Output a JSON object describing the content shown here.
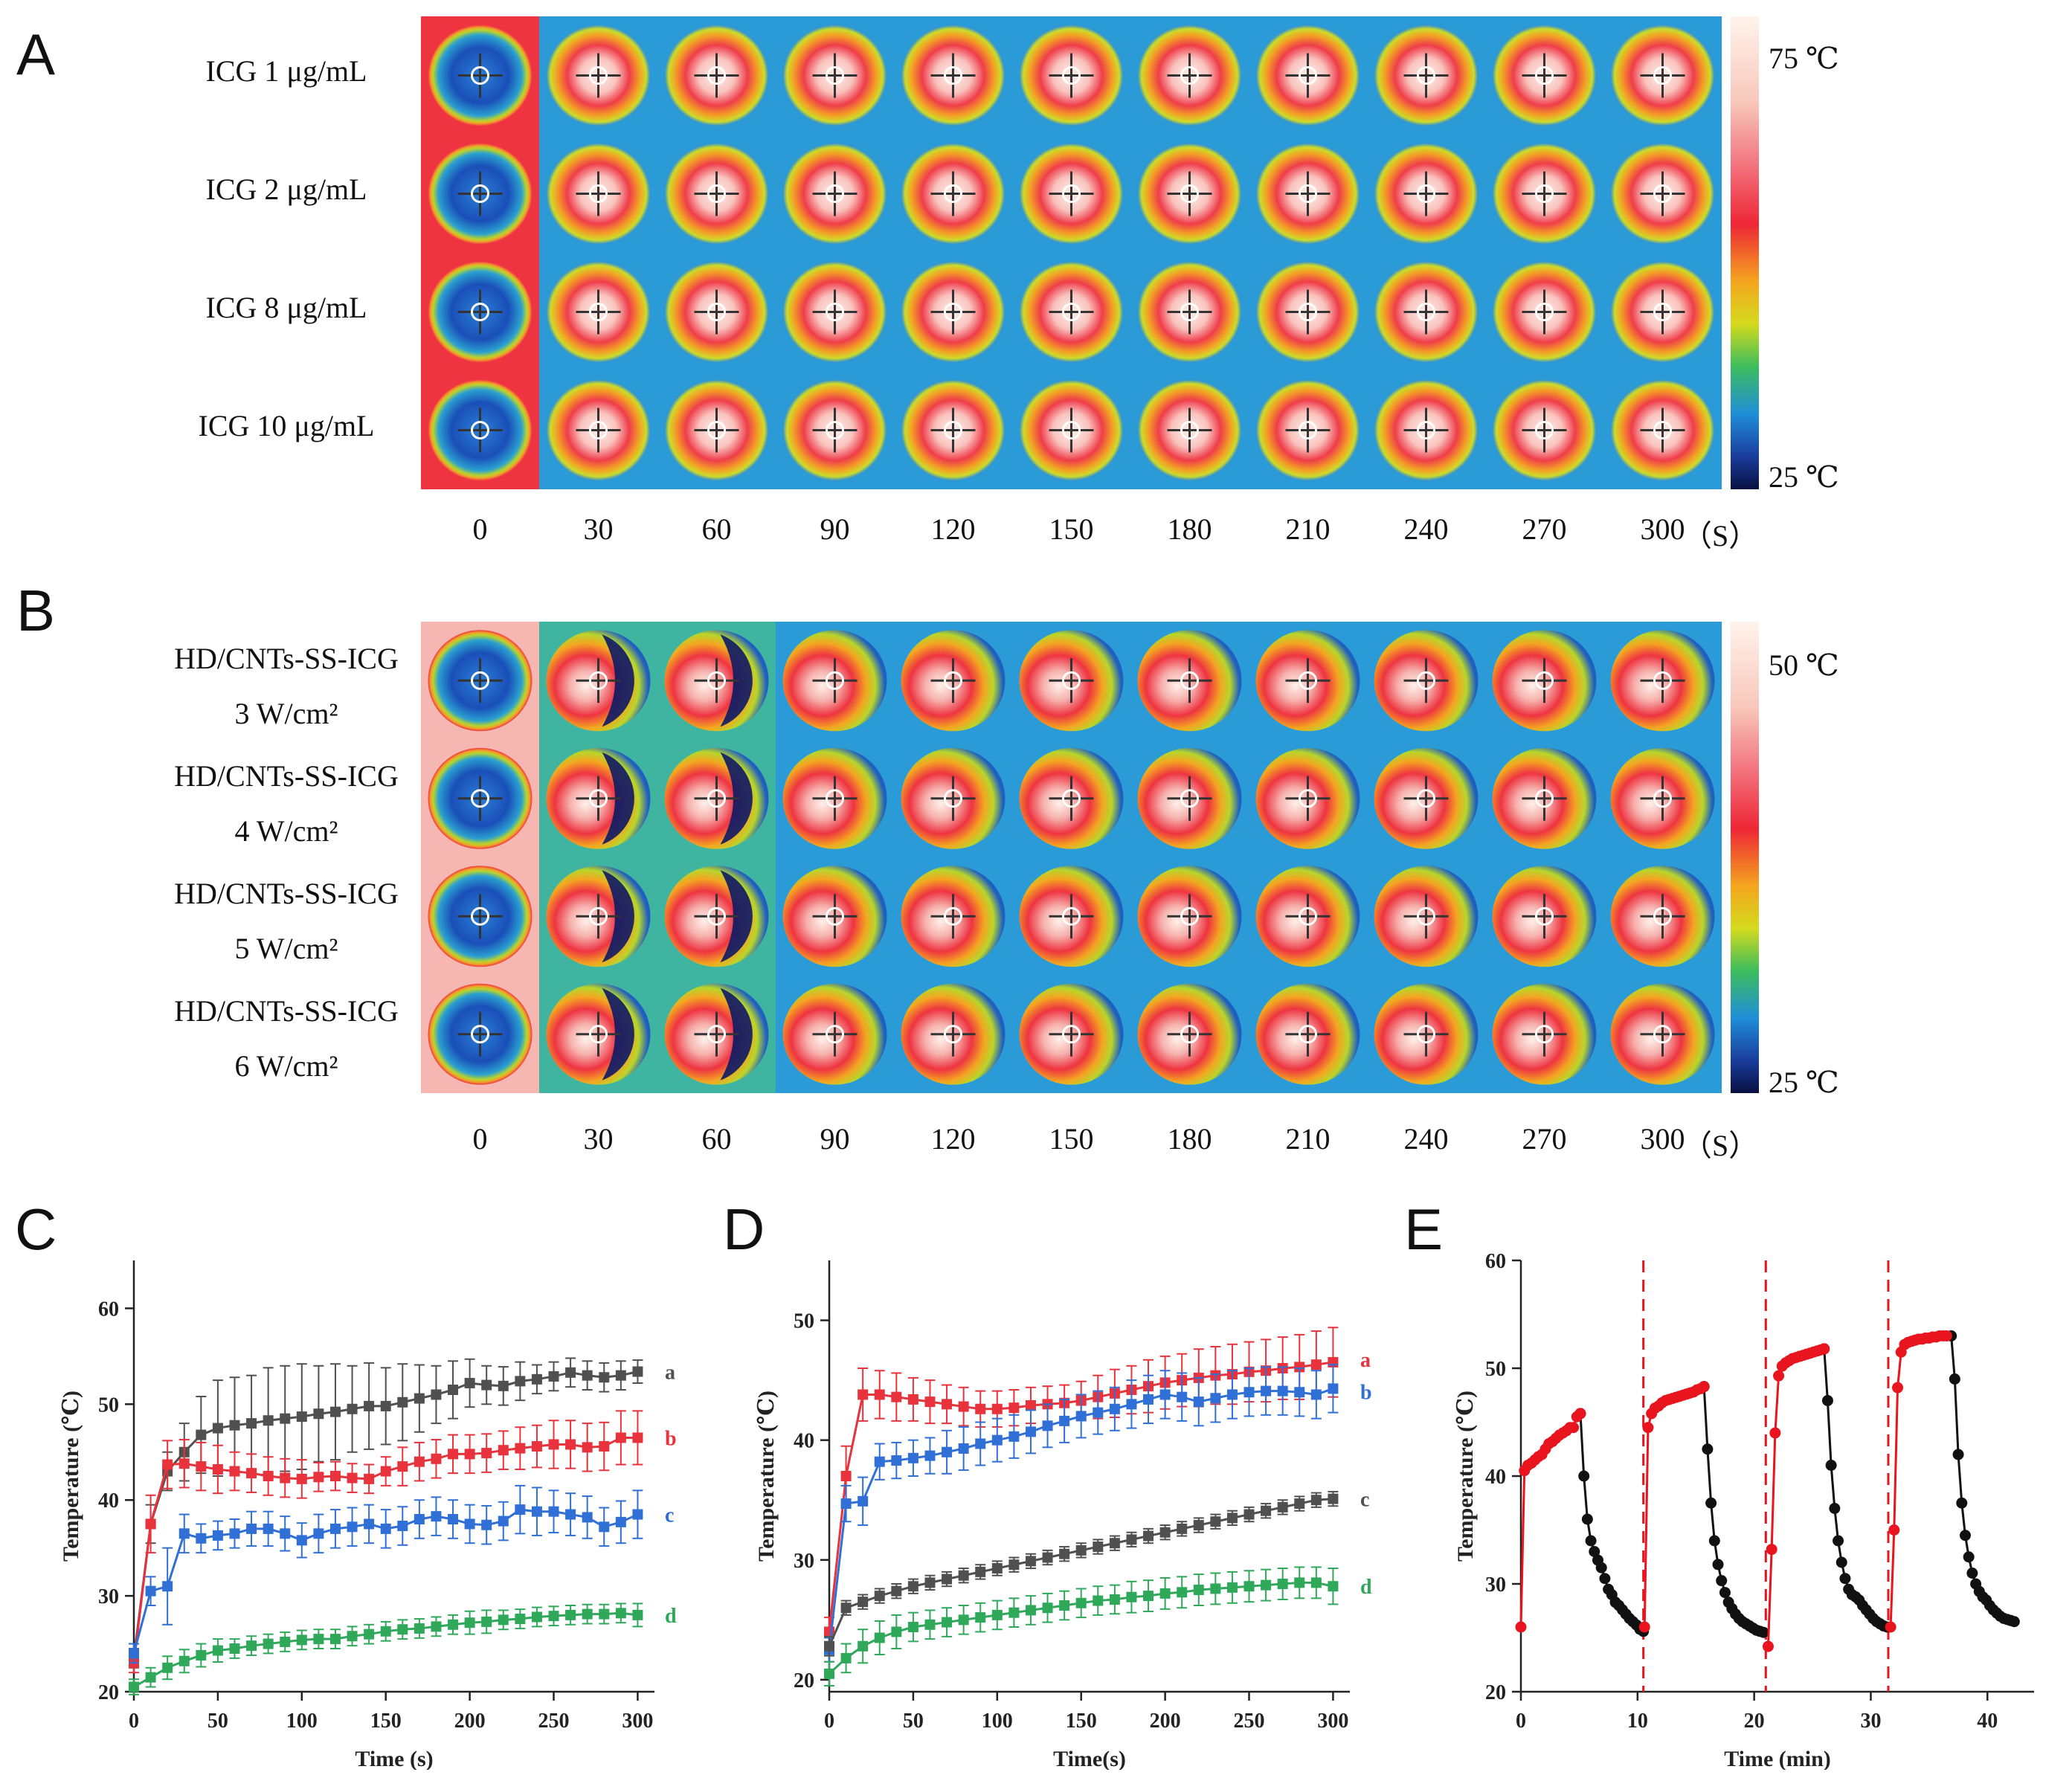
{
  "panels": {
    "A": "A",
    "B": "B",
    "C": "C",
    "D": "D",
    "E": "E"
  },
  "panelA": {
    "rows": [
      "ICG 1 μg/mL",
      "ICG 2 μg/mL",
      "ICG 8 μg/mL",
      "ICG 10 μg/mL"
    ],
    "times": [
      "0",
      "30",
      "60",
      "90",
      "120",
      "150",
      "180",
      "210",
      "240",
      "270",
      "300"
    ],
    "unit": "（S）",
    "scale_max": "75 ℃",
    "scale_min": "25 ℃"
  },
  "panelB": {
    "rows": [
      {
        "line1": "HD/CNTs-SS-ICG",
        "line2": "3 W/cm²"
      },
      {
        "line1": "HD/CNTs-SS-ICG",
        "line2": "4 W/cm²"
      },
      {
        "line1": "HD/CNTs-SS-ICG",
        "line2": "5 W/cm²"
      },
      {
        "line1": "HD/CNTs-SS-ICG",
        "line2": "6 W/cm²"
      }
    ],
    "times": [
      "0",
      "30",
      "60",
      "90",
      "120",
      "150",
      "180",
      "210",
      "240",
      "270",
      "300"
    ],
    "unit": "（S）",
    "scale_max": "50 ℃",
    "scale_min": "25 ℃"
  },
  "colors": {
    "a_gray": "#505050",
    "b_red": "#e8323c",
    "c_blue": "#2f6fd6",
    "d_green": "#2fa85a",
    "e_red": "#e8141e",
    "e_black": "#111111",
    "dash": "#e8141e"
  },
  "chart_data": [
    {
      "id": "C",
      "type": "line",
      "xlabel": "Time (s)",
      "ylabel": "Temperature (℃)",
      "xlim": [
        0,
        310
      ],
      "ylim": [
        20,
        65
      ],
      "xticks": [
        0,
        50,
        100,
        150,
        200,
        250,
        300
      ],
      "yticks": [
        20,
        30,
        40,
        50,
        60
      ],
      "x": [
        0,
        10,
        20,
        30,
        40,
        50,
        60,
        70,
        80,
        90,
        100,
        110,
        120,
        130,
        140,
        150,
        160,
        170,
        180,
        190,
        200,
        210,
        220,
        230,
        240,
        250,
        260,
        270,
        280,
        290,
        300
      ],
      "series": [
        {
          "name": "a",
          "color": "#505050",
          "values": [
            23.5,
            37.5,
            43,
            45,
            46.8,
            47.5,
            47.8,
            48,
            48.3,
            48.5,
            48.7,
            49,
            49.2,
            49.5,
            49.8,
            49.8,
            50.2,
            50.6,
            51,
            51.5,
            52.2,
            52,
            51.9,
            52.4,
            52.6,
            52.9,
            53.3,
            53,
            52.8,
            53,
            53.4
          ],
          "errors": [
            1,
            2,
            2,
            3,
            4,
            5,
            5,
            5,
            5.5,
            5.5,
            5.5,
            5,
            5,
            4.5,
            4.5,
            4,
            4,
            3.5,
            3,
            3,
            2.5,
            2,
            2,
            2,
            1.5,
            1.5,
            1.5,
            1.5,
            1.5,
            1.5,
            1.2
          ]
        },
        {
          "name": "b",
          "color": "#e8323c",
          "values": [
            23,
            37.5,
            43.7,
            43.8,
            43.5,
            43.2,
            43,
            42.8,
            42.5,
            42.3,
            42.2,
            42.4,
            42.5,
            42.3,
            42.2,
            43,
            43.5,
            44,
            44.3,
            44.8,
            44.8,
            44.9,
            45.2,
            45.4,
            45.6,
            45.8,
            45.8,
            45.5,
            45.6,
            46.5,
            46.5
          ],
          "errors": [
            1,
            3,
            2.5,
            2.5,
            2.5,
            2.5,
            2,
            2,
            2,
            2,
            2,
            1.5,
            1.5,
            1.5,
            1.5,
            1.5,
            2,
            2,
            2,
            2,
            2,
            2,
            2,
            2.2,
            2.2,
            2.5,
            2.5,
            2.5,
            2.5,
            2.8,
            2.8
          ]
        },
        {
          "name": "c",
          "color": "#2f6fd6",
          "values": [
            24,
            30.5,
            31,
            36.5,
            36,
            36.3,
            36.5,
            37,
            37,
            36.5,
            35.8,
            36.5,
            37,
            37.2,
            37.5,
            37,
            37.3,
            38,
            38.3,
            38,
            37.5,
            37.4,
            37.8,
            39,
            38.8,
            38.8,
            38.5,
            38.2,
            37.2,
            37.7,
            38.5
          ],
          "errors": [
            1,
            1.5,
            4,
            2,
            1.5,
            1.5,
            1.5,
            1.8,
            1.8,
            1.8,
            1.8,
            2,
            2,
            2,
            2,
            2,
            2,
            2,
            2,
            2,
            2,
            2,
            2,
            2.5,
            2.5,
            2.2,
            2.2,
            2.2,
            2,
            2.2,
            2.5
          ]
        },
        {
          "name": "d",
          "color": "#2fa85a",
          "values": [
            20.5,
            21.5,
            22.5,
            23.2,
            23.8,
            24.3,
            24.5,
            24.8,
            25,
            25.2,
            25.4,
            25.5,
            25.5,
            25.8,
            26,
            26.3,
            26.5,
            26.6,
            26.8,
            27,
            27.2,
            27.3,
            27.5,
            27.6,
            27.8,
            27.9,
            28,
            28.1,
            28.1,
            28.2,
            28
          ],
          "errors": [
            0.8,
            1,
            1.2,
            1.2,
            1.2,
            1.2,
            1,
            1,
            1,
            1,
            1,
            1,
            1,
            1,
            1,
            1,
            1,
            1,
            1,
            1,
            1.2,
            1.2,
            1,
            1,
            1,
            1,
            1,
            1,
            1,
            1,
            1.2
          ]
        }
      ]
    },
    {
      "id": "D",
      "type": "line",
      "xlabel": "Time(s)",
      "ylabel": "Temperature (℃)",
      "xlim": [
        0,
        310
      ],
      "ylim": [
        19,
        55
      ],
      "xticks": [
        0,
        50,
        100,
        150,
        200,
        250,
        300
      ],
      "yticks": [
        20,
        30,
        40,
        50
      ],
      "x": [
        0,
        10,
        20,
        30,
        40,
        50,
        60,
        70,
        80,
        90,
        100,
        110,
        120,
        130,
        140,
        150,
        160,
        170,
        180,
        190,
        200,
        210,
        220,
        230,
        240,
        250,
        260,
        270,
        280,
        290,
        300
      ],
      "series": [
        {
          "name": "a",
          "color": "#e8323c",
          "values": [
            24,
            37,
            43.8,
            43.8,
            43.6,
            43.4,
            43.2,
            43,
            42.8,
            42.6,
            42.6,
            42.7,
            42.9,
            43,
            43.1,
            43.3,
            43.6,
            43.9,
            44.2,
            44.5,
            44.8,
            45,
            45.2,
            45.4,
            45.5,
            45.7,
            45.8,
            46,
            46.1,
            46.3,
            46.5
          ],
          "errors": [
            1.2,
            2.5,
            2.2,
            2,
            2,
            1.8,
            1.8,
            1.6,
            1.6,
            1.5,
            1.5,
            1.5,
            1.5,
            1.5,
            1.5,
            1.6,
            1.8,
            2,
            2,
            2.2,
            2.2,
            2.2,
            2.4,
            2.4,
            2.5,
            2.5,
            2.6,
            2.6,
            2.7,
            2.8,
            2.9
          ]
        },
        {
          "name": "b",
          "color": "#2f6fd6",
          "values": [
            22.5,
            34.7,
            34.9,
            38.2,
            38.3,
            38.5,
            38.7,
            39,
            39.3,
            39.7,
            40,
            40.3,
            40.7,
            41.2,
            41.6,
            42,
            42.3,
            42.6,
            43,
            43.4,
            43.8,
            43.6,
            43.2,
            43.5,
            43.8,
            44,
            44.1,
            44.1,
            44,
            43.8,
            44.3
          ],
          "errors": [
            1,
            1.5,
            2,
            1.5,
            1.5,
            1.5,
            1.5,
            1.8,
            1.8,
            1.8,
            1.8,
            1.8,
            1.8,
            1.8,
            1.8,
            1.8,
            1.8,
            1.8,
            2,
            2,
            2,
            2,
            2,
            2,
            2,
            2,
            2,
            2,
            2,
            2,
            2
          ]
        },
        {
          "name": "c",
          "color": "#505050",
          "values": [
            22.8,
            26,
            26.5,
            27,
            27.4,
            27.8,
            28.1,
            28.4,
            28.7,
            29,
            29.3,
            29.6,
            29.9,
            30.2,
            30.5,
            30.8,
            31.1,
            31.4,
            31.7,
            32,
            32.3,
            32.6,
            32.9,
            33.2,
            33.5,
            33.8,
            34.1,
            34.4,
            34.7,
            35,
            35.1
          ],
          "errors": [
            0.8,
            0.6,
            0.6,
            0.6,
            0.6,
            0.6,
            0.6,
            0.6,
            0.6,
            0.6,
            0.6,
            0.6,
            0.6,
            0.6,
            0.6,
            0.6,
            0.6,
            0.6,
            0.6,
            0.6,
            0.6,
            0.6,
            0.6,
            0.6,
            0.6,
            0.6,
            0.6,
            0.6,
            0.6,
            0.6,
            0.6
          ]
        },
        {
          "name": "d",
          "color": "#2fa85a",
          "values": [
            20.5,
            21.8,
            22.8,
            23.5,
            24,
            24.4,
            24.6,
            24.8,
            25,
            25.2,
            25.4,
            25.6,
            25.8,
            26,
            26.2,
            26.4,
            26.6,
            26.7,
            26.9,
            27,
            27.2,
            27.3,
            27.5,
            27.6,
            27.7,
            27.8,
            27.9,
            28,
            28.1,
            28.1,
            27.8
          ],
          "errors": [
            1,
            1.2,
            1.4,
            1.4,
            1.4,
            1.2,
            1.2,
            1.2,
            1.2,
            1.2,
            1.2,
            1.2,
            1.2,
            1.2,
            1.2,
            1.2,
            1.2,
            1.2,
            1.3,
            1.3,
            1.3,
            1.3,
            1.3,
            1.3,
            1.3,
            1.3,
            1.3,
            1.3,
            1.3,
            1.3,
            1.5
          ]
        }
      ]
    },
    {
      "id": "E",
      "type": "scatter",
      "xlabel": "Time (min)",
      "ylabel": "Temperature (℃)",
      "xlim": [
        0,
        44
      ],
      "ylim": [
        20,
        60
      ],
      "xticks": [
        0,
        10,
        20,
        30,
        40
      ],
      "yticks": [
        20,
        30,
        40,
        50,
        60
      ],
      "cycle_dividers": [
        10.5,
        21,
        31.5
      ],
      "heating": [
        {
          "x": [
            0,
            0.3,
            0.6,
            0.9,
            1.2,
            1.5,
            1.8,
            2.1,
            2.4,
            2.7,
            3.0,
            3.3,
            3.6,
            3.9,
            4.2,
            4.5,
            4.8,
            5.1
          ],
          "y": [
            26,
            40.5,
            41,
            41.2,
            41.5,
            41.8,
            42,
            42.5,
            43,
            43.2,
            43.5,
            43.8,
            44,
            44.2,
            44.5,
            44.5,
            45.5,
            45.8
          ]
        },
        {
          "x": [
            10.6,
            10.9,
            11.2,
            11.5,
            11.8,
            12.1,
            12.4,
            12.7,
            13.0,
            13.3,
            13.6,
            13.9,
            14.2,
            14.5,
            14.8,
            15.1,
            15.4,
            15.7
          ],
          "y": [
            26,
            44.5,
            45.8,
            46.3,
            46.5,
            46.8,
            47,
            47.1,
            47.2,
            47.3,
            47.4,
            47.5,
            47.6,
            47.7,
            47.8,
            48,
            48.1,
            48.3
          ]
        },
        {
          "x": [
            21.2,
            21.5,
            21.8,
            22.1,
            22.4,
            22.7,
            23.0,
            23.3,
            23.6,
            23.9,
            24.2,
            24.5,
            24.8,
            25.1,
            25.4,
            25.7,
            26.0
          ],
          "y": [
            24.2,
            33.2,
            44,
            49.3,
            50.2,
            50.5,
            50.7,
            50.9,
            51,
            51.1,
            51.2,
            51.3,
            51.4,
            51.5,
            51.6,
            51.7,
            51.8
          ]
        },
        {
          "x": [
            31.7,
            32.0,
            32.3,
            32.6,
            32.9,
            33.2,
            33.5,
            33.8,
            34.1,
            34.4,
            34.7,
            35.0,
            35.3,
            35.6,
            35.9,
            36.2,
            36.5
          ],
          "y": [
            26,
            35,
            48.2,
            51.5,
            52.2,
            52.4,
            52.5,
            52.6,
            52.7,
            52.7,
            52.8,
            52.8,
            52.9,
            52.9,
            53,
            53,
            53
          ]
        }
      ],
      "cooling": [
        {
          "x": [
            5.1,
            5.4,
            5.7,
            6.0,
            6.3,
            6.6,
            6.9,
            7.2,
            7.5,
            7.8,
            8.1,
            8.4,
            8.7,
            9.0,
            9.3,
            9.6,
            9.9,
            10.2,
            10.5
          ],
          "y": [
            45.8,
            40,
            36,
            34,
            33,
            32.2,
            31.5,
            30.5,
            29.5,
            29,
            28.3,
            28,
            27.6,
            27.2,
            26.8,
            26.5,
            26.2,
            25.8,
            25.6
          ]
        },
        {
          "x": [
            15.7,
            16.0,
            16.3,
            16.6,
            16.9,
            17.2,
            17.5,
            17.8,
            18.1,
            18.4,
            18.7,
            19.0,
            19.3,
            19.6,
            19.9,
            20.2,
            20.5,
            20.8
          ],
          "y": [
            48.3,
            42.5,
            37.5,
            34,
            31.8,
            30.3,
            29.2,
            28.3,
            27.7,
            27.2,
            26.8,
            26.5,
            26.3,
            26.1,
            25.9,
            25.7,
            25.6,
            25.5
          ]
        },
        {
          "x": [
            26.0,
            26.3,
            26.6,
            26.9,
            27.2,
            27.5,
            27.8,
            28.1,
            28.4,
            28.7,
            29.0,
            29.3,
            29.6,
            29.9,
            30.2,
            30.5,
            30.8,
            31.1,
            31.4
          ],
          "y": [
            51.8,
            47,
            41,
            37,
            34,
            32,
            30.5,
            29.5,
            29,
            28.8,
            28.5,
            28,
            27.6,
            27.2,
            26.8,
            26.5,
            26.3,
            26.1,
            26
          ]
        },
        {
          "x": [
            36.9,
            37.2,
            37.5,
            37.8,
            38.1,
            38.4,
            38.7,
            39.0,
            39.3,
            39.6,
            39.9,
            40.2,
            40.5,
            40.8,
            41.1,
            41.4,
            41.7,
            42.0,
            42.3
          ],
          "y": [
            53,
            49,
            42,
            37.5,
            34.5,
            32.5,
            31,
            30,
            29.3,
            28.8,
            28.5,
            28,
            27.6,
            27.3,
            27,
            26.8,
            26.7,
            26.6,
            26.5
          ]
        }
      ]
    }
  ]
}
